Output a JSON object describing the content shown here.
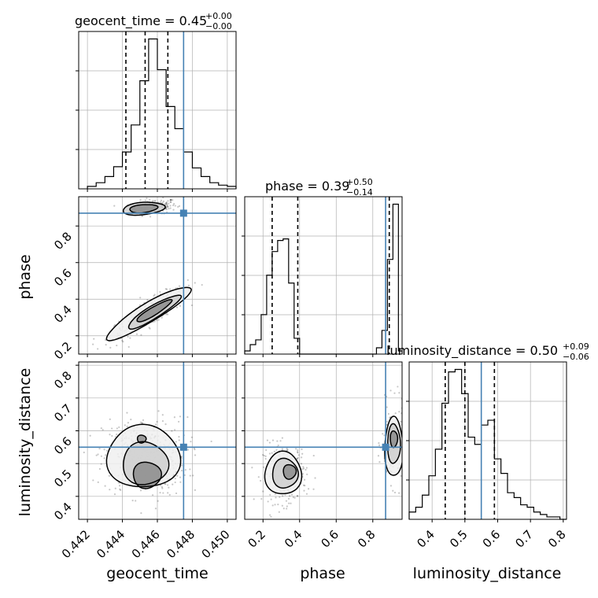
{
  "chart_data": {
    "type": "corner",
    "parameters": [
      "geocent_time",
      "phase",
      "luminosity_distance"
    ],
    "truths": {
      "geocent_time": 0.4475,
      "phase": 0.87,
      "luminosity_distance": 0.55
    },
    "colors": {
      "truth": "#4682b4",
      "hist": "#000000",
      "grid": "#b0b0b0",
      "scatter": "#000000"
    },
    "titles": [
      {
        "param": "geocent_time",
        "prefix": "geocent_time = ",
        "value": "0.45",
        "plus": "+0.00",
        "minus": "−0.00"
      },
      {
        "param": "phase",
        "prefix": "phase = ",
        "value": "0.39",
        "plus": "+0.50",
        "minus": "−0.14"
      },
      {
        "param": "luminosity_distance",
        "prefix": "luminosity_distance = ",
        "value": "0.50",
        "plus": "+0.09",
        "minus": "−0.06"
      }
    ],
    "axes": {
      "geocent_time": {
        "range": [
          0.4415,
          0.4505
        ],
        "ticks": [
          0.442,
          0.444,
          0.446,
          0.448,
          0.45
        ],
        "tick_labels": [
          "0.442",
          "0.444",
          "0.446",
          "0.448",
          "0.450"
        ]
      },
      "phase": {
        "range": [
          0.1,
          0.96
        ],
        "ticks": [
          0.2,
          0.4,
          0.6,
          0.8
        ],
        "tick_labels": [
          "0.2",
          "0.4",
          "0.6",
          "0.8"
        ]
      },
      "luminosity_distance": {
        "range": [
          0.33,
          0.81
        ],
        "ticks": [
          0.4,
          0.5,
          0.6,
          0.7,
          0.8
        ],
        "tick_labels": [
          "0.4",
          "0.5",
          "0.6",
          "0.7",
          "0.8"
        ]
      }
    },
    "histograms": {
      "geocent_time": {
        "bins": [
          0.442,
          0.4425,
          0.443,
          0.4435,
          0.444,
          0.4445,
          0.445,
          0.4455,
          0.446,
          0.4465,
          0.447,
          0.4475,
          0.448,
          0.4485,
          0.449,
          0.4495,
          0.45,
          0.4505
        ],
        "counts": [
          2,
          5,
          10,
          18,
          30,
          52,
          88,
          122,
          97,
          67,
          49,
          30,
          17,
          10,
          5,
          3,
          2
        ],
        "quantiles": [
          0.4442,
          0.4453,
          0.4466
        ]
      },
      "phase": {
        "bins": [
          0.1,
          0.13,
          0.16,
          0.19,
          0.22,
          0.25,
          0.28,
          0.31,
          0.34,
          0.37,
          0.4,
          0.43,
          0.46,
          0.49,
          0.52,
          0.55,
          0.58,
          0.61,
          0.64,
          0.67,
          0.7,
          0.73,
          0.76,
          0.79,
          0.82,
          0.85,
          0.88,
          0.91,
          0.94,
          0.96
        ],
        "counts": [
          2,
          6,
          9,
          25,
          50,
          65,
          72,
          73,
          45,
          10,
          0,
          0,
          0,
          0,
          0,
          0,
          0,
          0,
          0,
          0,
          0,
          0,
          0,
          0,
          4,
          15,
          60,
          95,
          2
        ],
        "quantiles": [
          0.25,
          0.39,
          0.89
        ]
      },
      "luminosity_distance": {
        "bins": [
          0.33,
          0.35,
          0.37,
          0.39,
          0.41,
          0.43,
          0.45,
          0.47,
          0.49,
          0.51,
          0.53,
          0.55,
          0.57,
          0.59,
          0.61,
          0.63,
          0.65,
          0.67,
          0.69,
          0.71,
          0.73,
          0.75,
          0.77,
          0.79,
          0.81
        ],
        "counts": [
          3,
          5,
          10,
          18,
          29,
          48,
          61,
          62,
          52,
          34,
          31,
          39,
          41,
          25,
          19,
          11,
          9,
          6,
          5,
          3,
          2,
          1,
          1,
          0
        ],
        "quantiles": [
          0.44,
          0.5,
          0.59
        ]
      }
    },
    "pairs": [
      {
        "x": "geocent_time",
        "y": "phase",
        "clusters": [
          {
            "cx": 0.4458,
            "cy": 0.905,
            "sx": 0.00065,
            "sy": 0.02,
            "slope": 8,
            "n": 200
          },
          {
            "cx": 0.4455,
            "cy": 0.32,
            "sx": 0.0011,
            "sy": 0.035,
            "slope": 55,
            "n": 320
          }
        ],
        "contours": [
          {
            "cx": 0.4452,
            "cy": 0.895,
            "rx": 0.0008,
            "ry": 0.022,
            "slope": 8,
            "level": 1
          },
          {
            "cx": 0.4452,
            "cy": 0.895,
            "rx": 0.0012,
            "ry": 0.034,
            "slope": 8,
            "level": 2
          },
          {
            "cx": 0.4458,
            "cy": 0.335,
            "rx": 0.001,
            "ry": 0.025,
            "slope": 55,
            "level": 1
          },
          {
            "cx": 0.4458,
            "cy": 0.33,
            "rx": 0.0015,
            "ry": 0.04,
            "slope": 55,
            "level": 2
          },
          {
            "cx": 0.4455,
            "cy": 0.325,
            "rx": 0.0024,
            "ry": 0.06,
            "slope": 55,
            "level": 3
          }
        ]
      },
      {
        "x": "geocent_time",
        "y": "luminosity_distance",
        "clusters": [
          {
            "cx": 0.4453,
            "cy": 0.52,
            "sx": 0.0012,
            "sy": 0.06,
            "slope": 0,
            "n": 420
          }
        ],
        "contours": [
          {
            "cx": 0.4451,
            "cy": 0.575,
            "rx": 0.00025,
            "ry": 0.012,
            "slope": 0,
            "level": 1
          },
          {
            "cx": 0.4454,
            "cy": 0.465,
            "rx": 0.0008,
            "ry": 0.04,
            "slope": 0,
            "level": 1
          },
          {
            "cx": 0.4453,
            "cy": 0.5,
            "rx": 0.0013,
            "ry": 0.065,
            "slope": 0,
            "level": 2
          },
          {
            "cx": 0.4452,
            "cy": 0.52,
            "rx": 0.0021,
            "ry": 0.095,
            "slope": 0,
            "level": 3
          }
        ]
      },
      {
        "x": "phase",
        "y": "luminosity_distance",
        "clusters": [
          {
            "cx": 0.32,
            "cy": 0.47,
            "sx": 0.06,
            "sy": 0.045,
            "slope": 0,
            "n": 260
          },
          {
            "cx": 0.91,
            "cy": 0.56,
            "sx": 0.03,
            "sy": 0.06,
            "slope": 0,
            "n": 180
          }
        ],
        "contours": [
          {
            "cx": 0.345,
            "cy": 0.475,
            "rx": 0.035,
            "ry": 0.022,
            "slope": 0,
            "level": 1
          },
          {
            "cx": 0.32,
            "cy": 0.47,
            "rx": 0.07,
            "ry": 0.045,
            "slope": 0,
            "level": 2
          },
          {
            "cx": 0.31,
            "cy": 0.47,
            "rx": 0.1,
            "ry": 0.065,
            "slope": 0,
            "level": 3
          },
          {
            "cx": 0.915,
            "cy": 0.575,
            "rx": 0.02,
            "ry": 0.025,
            "slope": 0,
            "level": 1
          },
          {
            "cx": 0.915,
            "cy": 0.56,
            "rx": 0.035,
            "ry": 0.06,
            "slope": 0,
            "level": 2
          },
          {
            "cx": 0.915,
            "cy": 0.55,
            "rx": 0.05,
            "ry": 0.09,
            "slope": 0,
            "level": 3
          }
        ]
      }
    ]
  }
}
